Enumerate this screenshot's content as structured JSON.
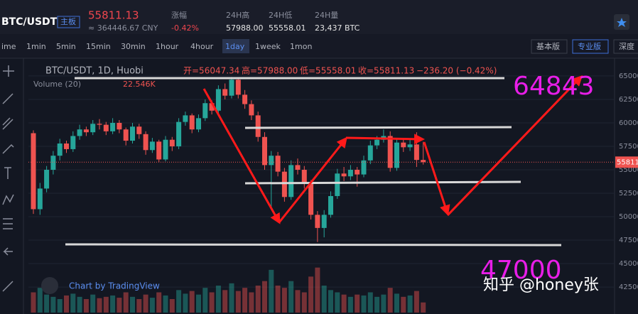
{
  "header": {
    "symbol": "BTC/USDT",
    "board": "主板",
    "price": "55811.13",
    "cny": "≈ 364446.67 CNY",
    "stats": [
      {
        "label": "涨幅",
        "value": "-0.42%"
      },
      {
        "label": "24H高",
        "value": "57988.00"
      },
      {
        "label": "24H低",
        "value": "55558.01"
      },
      {
        "label": "24H量",
        "value": "23,437 BTC"
      }
    ]
  },
  "toolbar": {
    "intervals": [
      "ime",
      "1min",
      "5min",
      "15min",
      "30min",
      "1hour",
      "4hour",
      "1day",
      "1week",
      "1mon"
    ],
    "active": "1day",
    "modes": [
      "基本版",
      "专业版",
      "深度"
    ]
  },
  "chart_data": {
    "type": "candlestick",
    "legend": {
      "symbol": "BTC/USDT, 1D, Huobi",
      "open": "开=56047.34",
      "high": "高=57988.00",
      "low": "低=55558.01",
      "close": "收=55811.13",
      "change": "−236.20 (−0.42%)",
      "volume_name": "Volume (20)",
      "volume_value": "22.546K"
    },
    "ylim": [
      39780,
      66660
    ],
    "yticks": [
      42500,
      45000,
      47500,
      50000,
      52500,
      55000,
      57500,
      60000,
      62500,
      65000
    ],
    "price_tag": {
      "value": 55811.13,
      "label": "55811"
    },
    "up_color": "#26a69a",
    "down_color": "#ef5350",
    "volume_ylim": [
      0,
      150
    ],
    "open": [
      58900,
      50800,
      53000,
      55000,
      56500,
      57800,
      57200,
      58600,
      59300,
      59000,
      59900,
      59800,
      59100,
      60000,
      59300,
      58100,
      59600,
      58800,
      57100,
      58000,
      56100,
      58200,
      57500,
      60100,
      60800,
      59300,
      60500,
      62100,
      61300,
      63600,
      62900,
      64600,
      63000,
      62000,
      60800,
      58500,
      55500,
      56500,
      54800,
      52100,
      55500,
      55000,
      53500,
      50200,
      48800,
      50200,
      52200,
      54600,
      54300,
      55000,
      54500,
      56000,
      57600,
      58200,
      58600,
      55200,
      57900,
      57400,
      57700,
      56047.34
    ],
    "high": [
      59200,
      53600,
      55400,
      57000,
      58300,
      58100,
      59100,
      59800,
      59600,
      60300,
      60400,
      60100,
      60500,
      60300,
      59500,
      60000,
      59900,
      59100,
      58400,
      58200,
      58600,
      58500,
      60500,
      61200,
      61000,
      60900,
      62500,
      62400,
      64000,
      64200,
      64900,
      64800,
      63500,
      62400,
      61200,
      59000,
      57000,
      56900,
      55200,
      56000,
      56200,
      55400,
      53900,
      50600,
      50700,
      52700,
      55100,
      55300,
      55500,
      55300,
      56500,
      58100,
      58600,
      59300,
      59100,
      58300,
      58400,
      58200,
      59000,
      57988
    ],
    "low": [
      50300,
      50200,
      52600,
      54500,
      56000,
      56800,
      56900,
      58200,
      58600,
      58700,
      59300,
      58700,
      58800,
      58900,
      57600,
      57800,
      58300,
      56600,
      56800,
      55800,
      55900,
      57000,
      57200,
      59700,
      58900,
      59000,
      60200,
      60900,
      61000,
      62500,
      62600,
      62600,
      61500,
      60300,
      58000,
      55000,
      50800,
      54300,
      51600,
      51800,
      54500,
      53000,
      49700,
      47300,
      47800,
      49900,
      51900,
      53800,
      53900,
      53200,
      54200,
      55600,
      57200,
      57900,
      54800,
      54900,
      56900,
      57000,
      55300,
      55558.01
    ],
    "close": [
      50800,
      53000,
      55000,
      56500,
      57800,
      57200,
      58600,
      59300,
      59000,
      59900,
      59800,
      59100,
      60000,
      59300,
      58100,
      59600,
      58800,
      57100,
      58000,
      56100,
      58200,
      57500,
      60100,
      60800,
      59300,
      60500,
      62100,
      61300,
      63600,
      62900,
      64600,
      63000,
      62000,
      60800,
      58500,
      55500,
      56500,
      54800,
      52100,
      55500,
      55000,
      53500,
      50200,
      48800,
      50200,
      52200,
      54600,
      54300,
      55000,
      54500,
      56000,
      57600,
      58200,
      58600,
      55200,
      57900,
      57400,
      57700,
      56047.34,
      55811.13
    ],
    "volume": [
      45,
      55,
      40,
      35,
      30,
      38,
      42,
      35,
      30,
      40,
      32,
      35,
      38,
      33,
      45,
      35,
      30,
      40,
      33,
      45,
      38,
      30,
      50,
      42,
      48,
      40,
      55,
      45,
      60,
      50,
      65,
      48,
      55,
      45,
      60,
      70,
      95,
      60,
      55,
      70,
      50,
      45,
      80,
      100,
      60,
      50,
      45,
      40,
      35,
      40,
      38,
      45,
      35,
      40,
      55,
      42,
      35,
      38,
      48,
      22.546
    ],
    "annotations": [
      "64843",
      "47000"
    ],
    "credit": "Chart by TradingView"
  },
  "watermark": "知乎 @honey张"
}
